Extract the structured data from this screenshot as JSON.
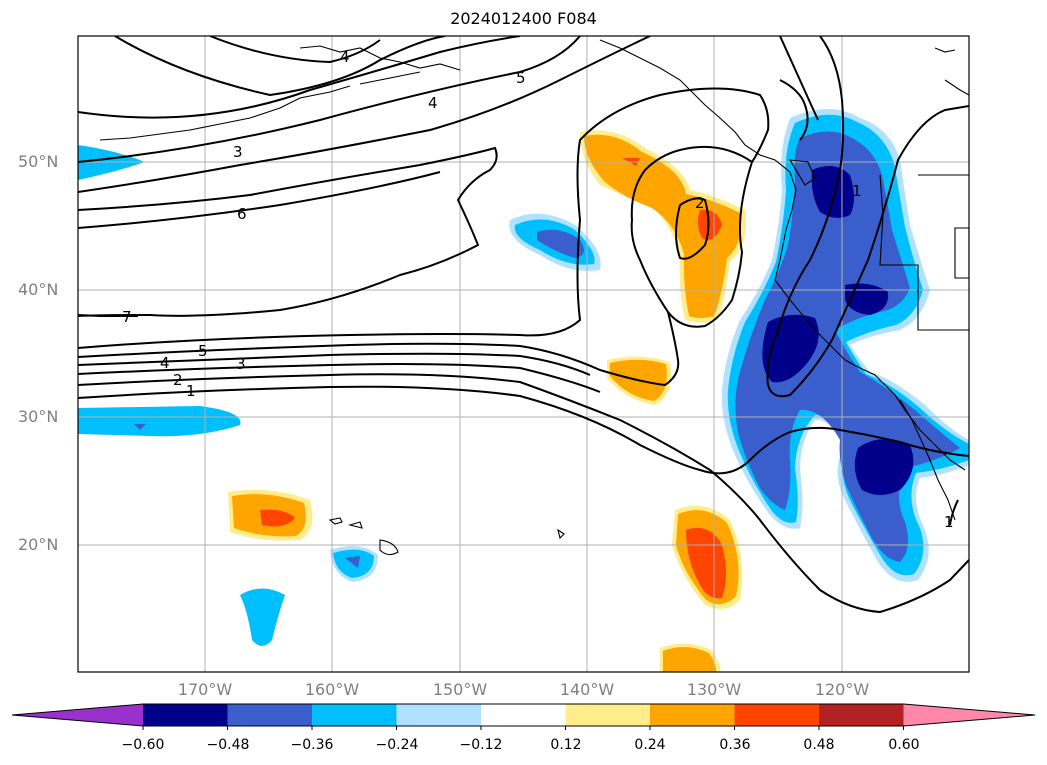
{
  "title": "2024012400 F084",
  "lat_labels": [
    {
      "text": "50°N",
      "lat": 50
    },
    {
      "text": "40°N",
      "lat": 40
    },
    {
      "text": "30°N",
      "lat": 30
    },
    {
      "text": "20°N",
      "lat": 20
    }
  ],
  "lon_labels": [
    {
      "text": "170°W",
      "lon": -170
    },
    {
      "text": "160°W",
      "lon": -160
    },
    {
      "text": "150°W",
      "lon": -150
    },
    {
      "text": "140°W",
      "lon": -140
    },
    {
      "text": "130°W",
      "lon": -130
    },
    {
      "text": "120°W",
      "lon": -120
    }
  ],
  "colorbar": {
    "ticks": [
      "−0.60",
      "−0.48",
      "−0.36",
      "−0.24",
      "−0.12",
      "0.12",
      "0.24",
      "0.36",
      "0.48",
      "0.60"
    ],
    "colors": [
      "#9932CC",
      "#00008B",
      "#3A5FCD",
      "#00BFFF",
      "#B0E2FF",
      "#FFFFFF",
      "#FFEC8B",
      "#FFA500",
      "#FF4500",
      "#B22222",
      "#FF88AA"
    ]
  },
  "contour_labels": [
    "4",
    "5",
    "4",
    "3",
    "6",
    "7",
    "5",
    "4",
    "3",
    "2",
    "1",
    "2",
    "1",
    "1"
  ]
}
